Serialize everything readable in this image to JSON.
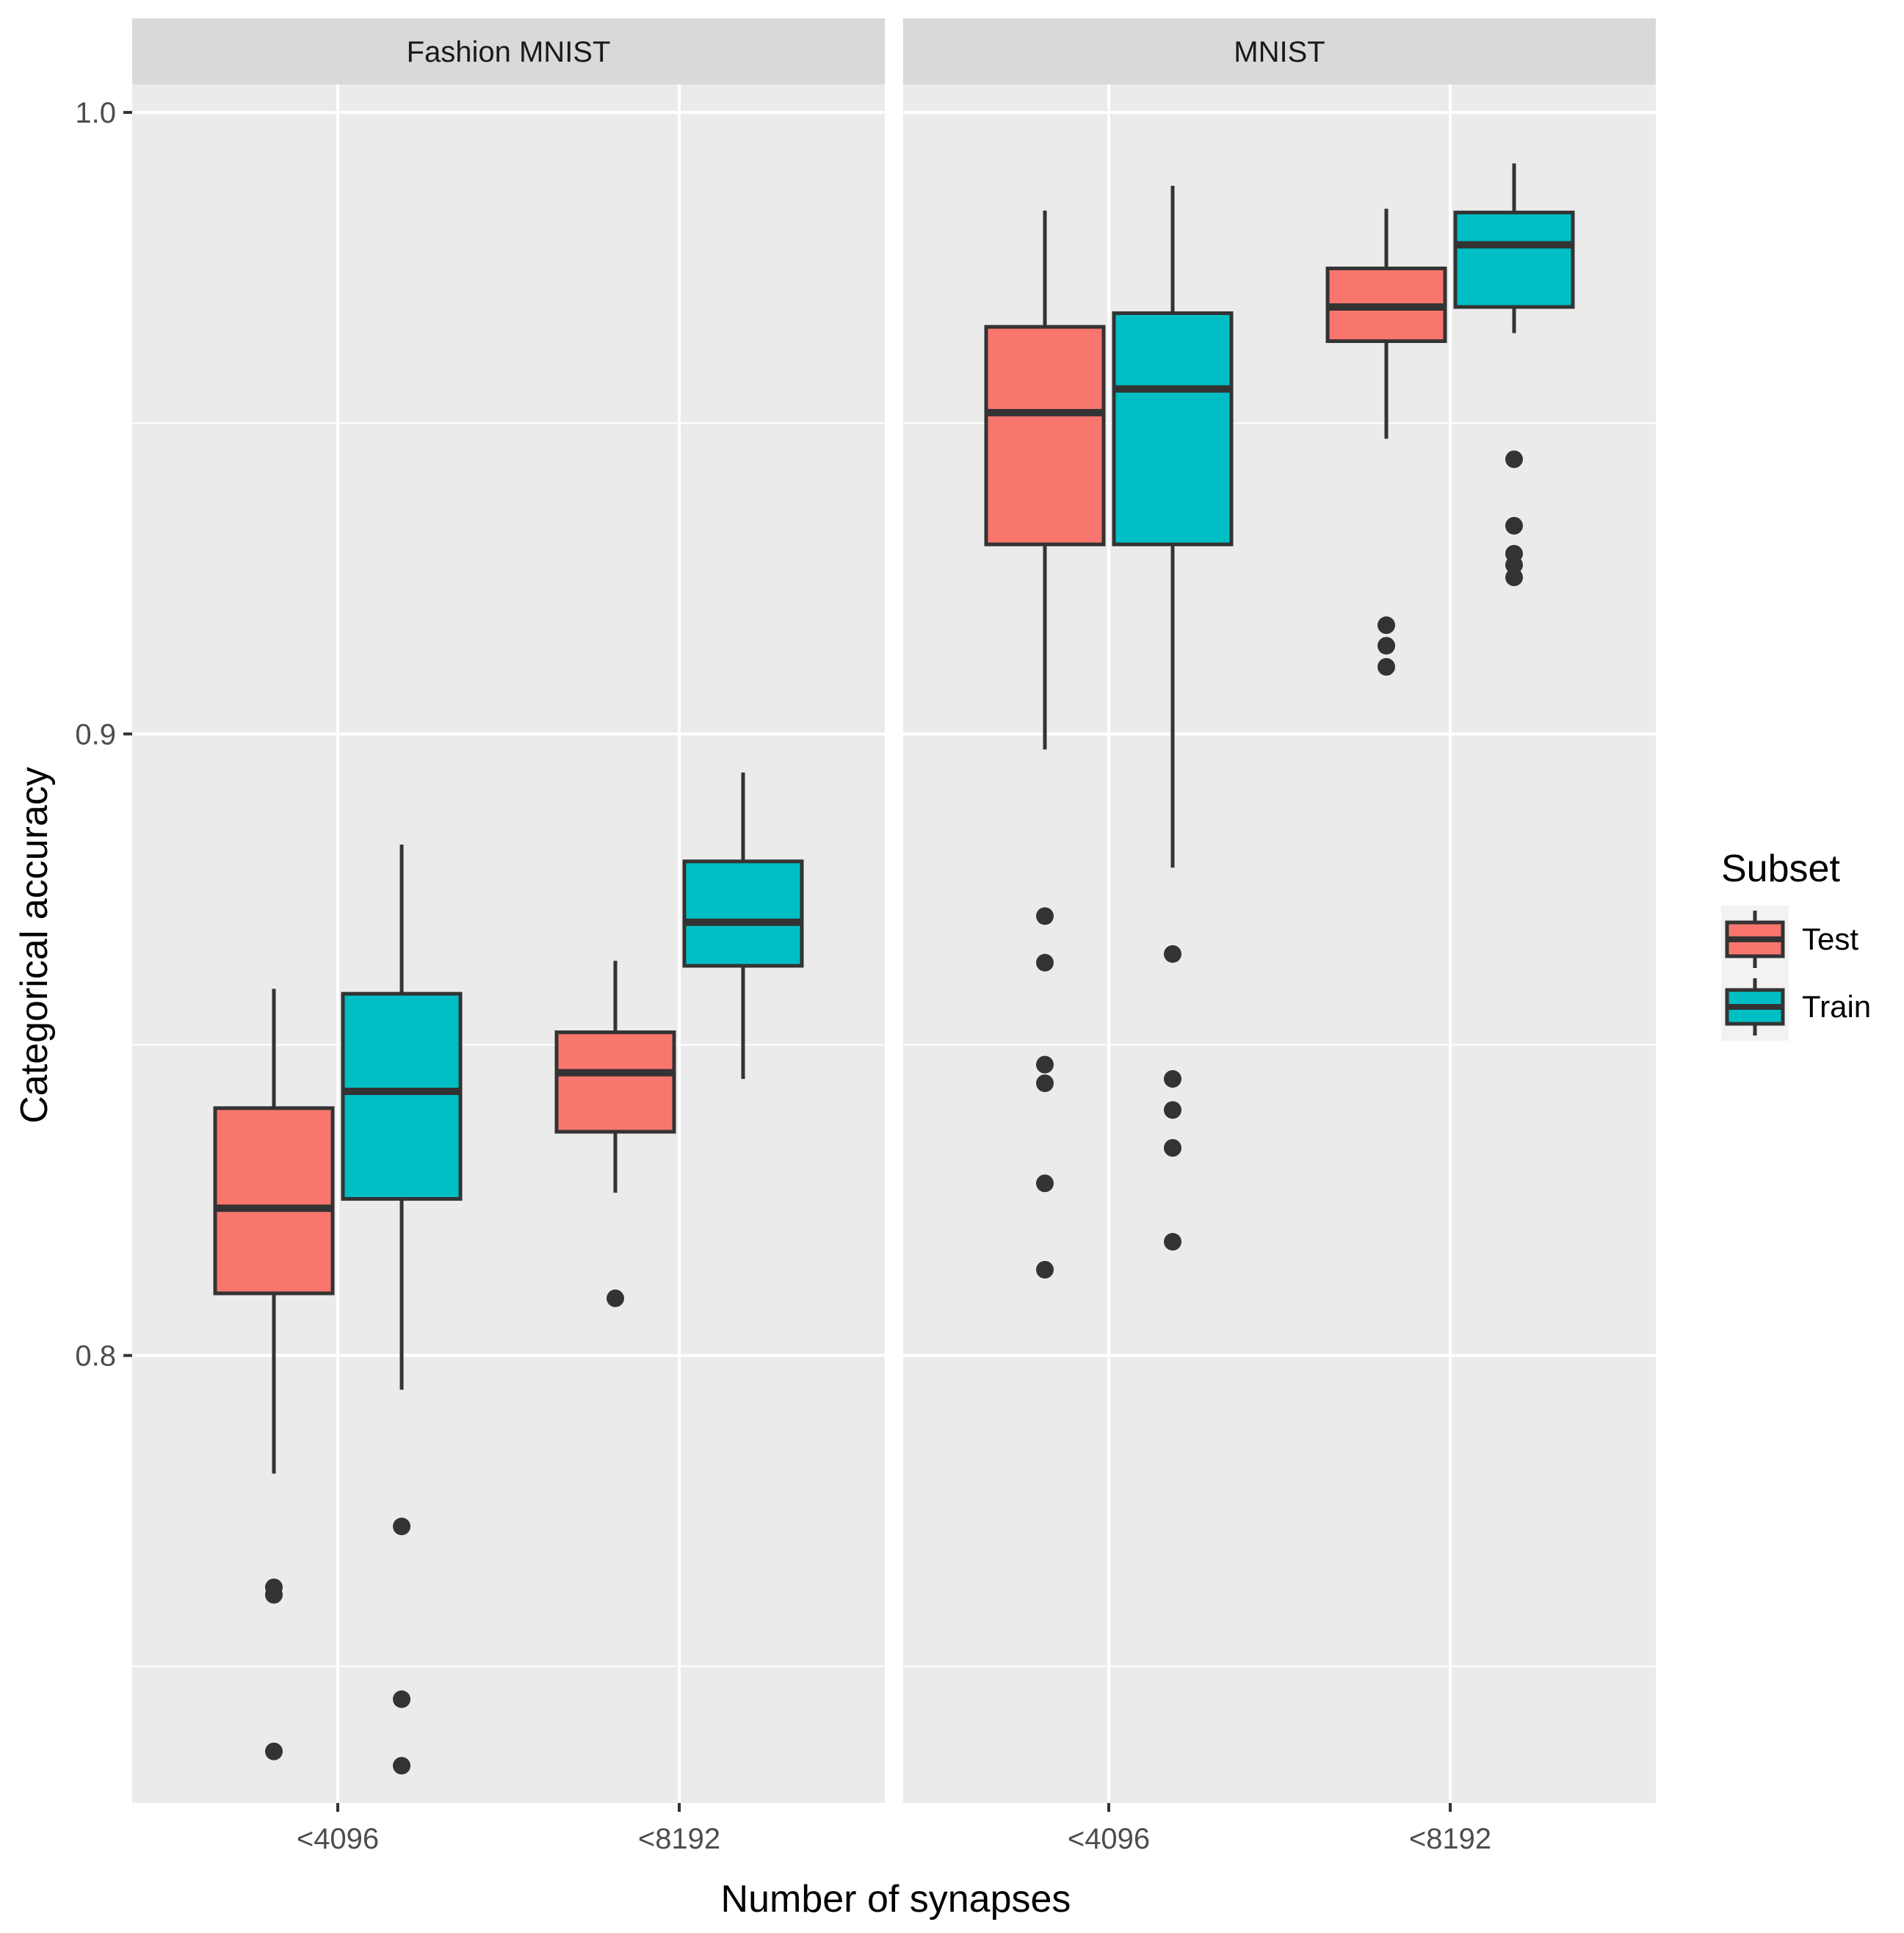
{
  "chart_data": {
    "type": "boxplot",
    "xlabel": "Number of synapses",
    "ylabel": "Categorical accuracy",
    "ylim": [
      0.728,
      1.0045
    ],
    "y_ticks": [
      "0.8",
      "0.9",
      "1.0"
    ],
    "y_tick_values": [
      0.8,
      0.9,
      1.0
    ],
    "y_minor_values": [
      0.75,
      0.85,
      0.95
    ],
    "categories": [
      "<4096",
      "<8192"
    ],
    "legend": {
      "title": "Subset",
      "entries": [
        {
          "name": "Test",
          "color": "#F8766D"
        },
        {
          "name": "Train",
          "color": "#00BFC4"
        }
      ]
    },
    "colors": {
      "panel_bg": "#EBEBEB",
      "strip_bg": "#D9D9D9",
      "grid": "#FFFFFF",
      "box_line": "#333333",
      "legend_key_bg": "#F2F2F2"
    },
    "panels": [
      {
        "title": "Fashion MNIST",
        "groups": [
          {
            "category": "<4096",
            "boxes": [
              {
                "subset": "Test",
                "whisker_low": 0.781,
                "q1": 0.81,
                "median": 0.8237,
                "q3": 0.8398,
                "whisker_high": 0.859,
                "outliers": [
                  0.7627,
                  0.7615,
                  0.7363
                ]
              },
              {
                "subset": "Train",
                "whisker_low": 0.7945,
                "q1": 0.8252,
                "median": 0.8425,
                "q3": 0.8582,
                "whisker_high": 0.8822,
                "outliers": [
                  0.7725,
                  0.7447,
                  0.734
                ]
              }
            ]
          },
          {
            "category": "<8192",
            "boxes": [
              {
                "subset": "Test",
                "whisker_low": 0.8262,
                "q1": 0.836,
                "median": 0.8455,
                "q3": 0.852,
                "whisker_high": 0.8635,
                "outliers": [
                  0.8092
                ]
              },
              {
                "subset": "Train",
                "whisker_low": 0.8445,
                "q1": 0.8627,
                "median": 0.8697,
                "q3": 0.8795,
                "whisker_high": 0.8938,
                "outliers": []
              }
            ]
          }
        ]
      },
      {
        "title": "MNIST",
        "groups": [
          {
            "category": "<4096",
            "boxes": [
              {
                "subset": "Test",
                "whisker_low": 0.8975,
                "q1": 0.9305,
                "median": 0.9517,
                "q3": 0.9655,
                "whisker_high": 0.9842,
                "outliers": [
                  0.8707,
                  0.8632,
                  0.8468,
                  0.8438,
                  0.8277,
                  0.8138
                ]
              },
              {
                "subset": "Train",
                "whisker_low": 0.8785,
                "q1": 0.9305,
                "median": 0.9555,
                "q3": 0.9677,
                "whisker_high": 0.9882,
                "outliers": [
                  0.8646,
                  0.8445,
                  0.8395,
                  0.8334,
                  0.8183
                ]
              }
            ]
          },
          {
            "category": "<8192",
            "boxes": [
              {
                "subset": "Test",
                "whisker_low": 0.9475,
                "q1": 0.9632,
                "median": 0.9687,
                "q3": 0.9749,
                "whisker_high": 0.9845,
                "outliers": [
                  0.9175,
                  0.9142,
                  0.9108
                ]
              },
              {
                "subset": "Train",
                "whisker_low": 0.9645,
                "q1": 0.9687,
                "median": 0.9787,
                "q3": 0.9839,
                "whisker_high": 0.9918,
                "outliers": [
                  0.9442,
                  0.9335,
                  0.929,
                  0.9272,
                  0.9252
                ]
              }
            ]
          }
        ]
      }
    ]
  }
}
